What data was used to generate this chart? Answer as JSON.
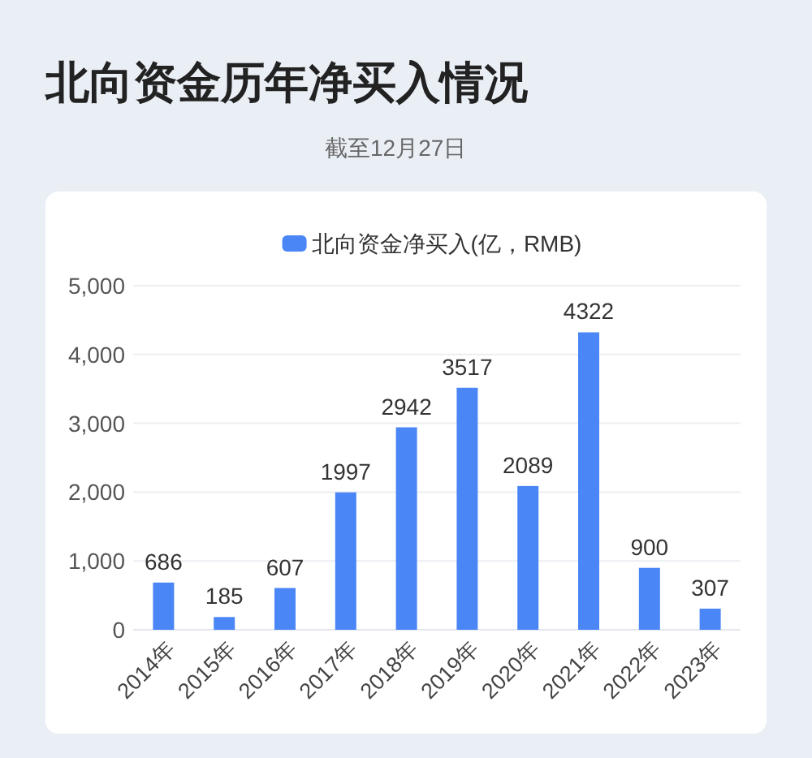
{
  "chart_data": {
    "type": "bar",
    "title": "北向资金历年净买入情况",
    "annotations": [
      "截至12月27日"
    ],
    "categories": [
      "2014年",
      "2015年",
      "2016年",
      "2017年",
      "2018年",
      "2019年",
      "2020年",
      "2021年",
      "2022年",
      "2023年"
    ],
    "series": [
      {
        "name": "北向资金净买入(亿，RMB)",
        "color": "#4a86f5",
        "values": [
          686,
          185,
          607,
          1997,
          2942,
          3517,
          2089,
          4322,
          900,
          307
        ]
      }
    ],
    "ylim": [
      0,
      5000
    ],
    "yticks": [
      0,
      {
        "value": 1000,
        "label": "1,000"
      },
      {
        "value": 2000,
        "label": "2,000"
      },
      {
        "value": 3000,
        "label": "3,000"
      },
      {
        "value": 4000,
        "label": "4,000"
      },
      {
        "value": 5000,
        "label": "5,000"
      }
    ],
    "grid": "y",
    "legend": "top",
    "data_labels": true
  }
}
